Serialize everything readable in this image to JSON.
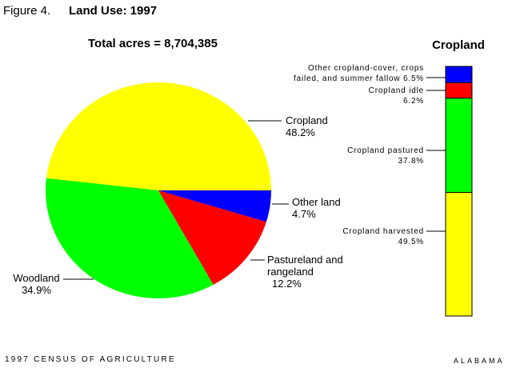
{
  "header": {
    "figure": "Figure 4.",
    "title": "Land Use: 1997"
  },
  "footer": {
    "left": "1997 CENSUS OF AGRICULTURE",
    "right": "ALABAMA"
  },
  "chart_data": [
    {
      "type": "pie",
      "subtitle": "Total acres = 8,704,385",
      "categories": [
        "Cropland",
        "Woodland",
        "Pastureland and rangeland",
        "Other land"
      ],
      "values": [
        48.2,
        34.9,
        12.2,
        4.7
      ],
      "value_labels": [
        "48.2%",
        "34.9%",
        "12.2%",
        "4.7%"
      ],
      "colors": [
        "#ffff00",
        "#00ff00",
        "#ff0000",
        "#0000ff"
      ]
    },
    {
      "type": "stacked_bar",
      "title": "Cropland",
      "categories": [
        "Cropland harvested",
        "Cropland pastured",
        "Cropland idle",
        "Other cropland-cover, crops failed, and summer fallow"
      ],
      "values": [
        49.5,
        37.8,
        6.2,
        6.5
      ],
      "value_labels": [
        "49.5%",
        "37.8%",
        "6.2%",
        "6.5%"
      ],
      "colors": [
        "#ffff00",
        "#00ff00",
        "#ff0000",
        "#0000ff"
      ]
    }
  ]
}
